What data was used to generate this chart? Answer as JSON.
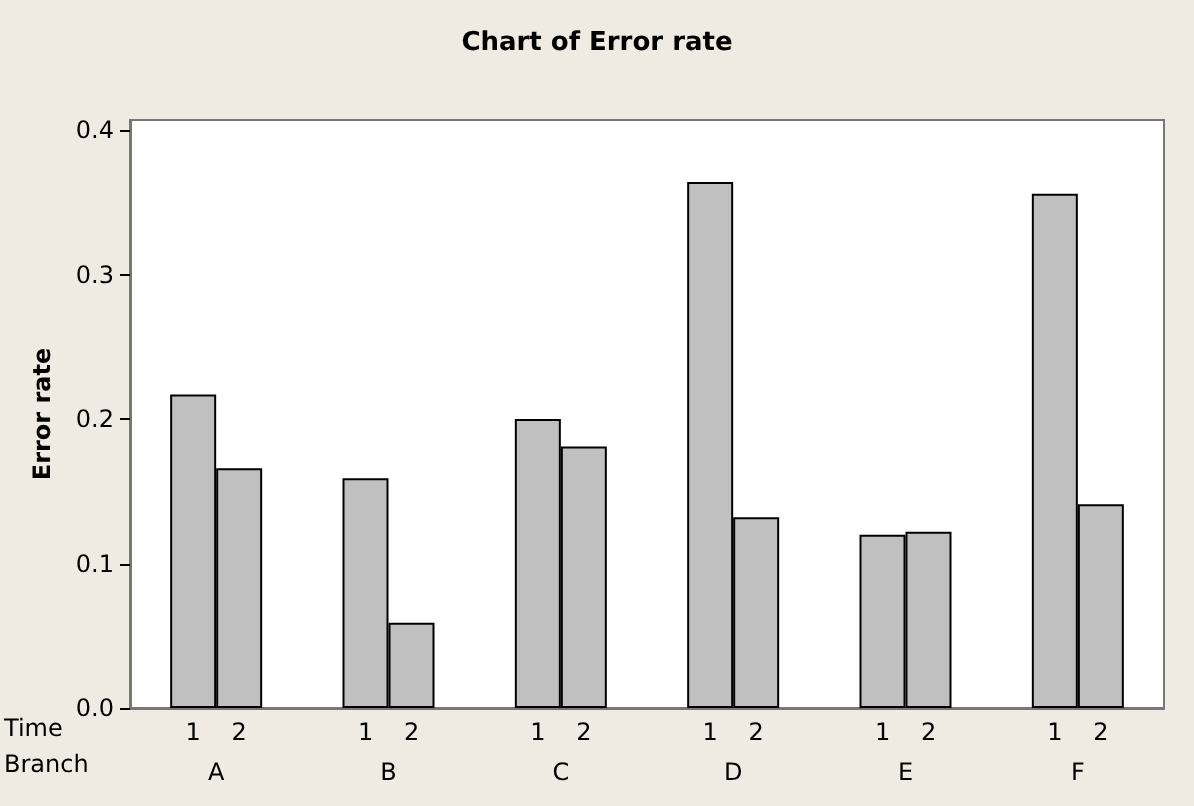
{
  "chart_data": {
    "type": "bar",
    "title": "Chart of Error rate",
    "ylabel": "Error rate",
    "categories": [
      "A",
      "B",
      "C",
      "D",
      "E",
      "F"
    ],
    "series": [
      {
        "name": "1",
        "color": "#c0c0c0",
        "values": [
          0.217,
          0.159,
          0.2,
          0.364,
          0.12,
          0.356
        ]
      },
      {
        "name": "2",
        "color": "#c0c0c0",
        "values": [
          0.166,
          0.059,
          0.181,
          0.132,
          0.122,
          0.141
        ]
      }
    ],
    "annotations": [
      "Time",
      "Branch"
    ],
    "ylim": [
      0,
      0.407
    ],
    "yticks": [
      {
        "value": 0,
        "label": "0.0"
      },
      0.1,
      0.2,
      0.3,
      0.4
    ],
    "grid": false,
    "legend": false
  }
}
